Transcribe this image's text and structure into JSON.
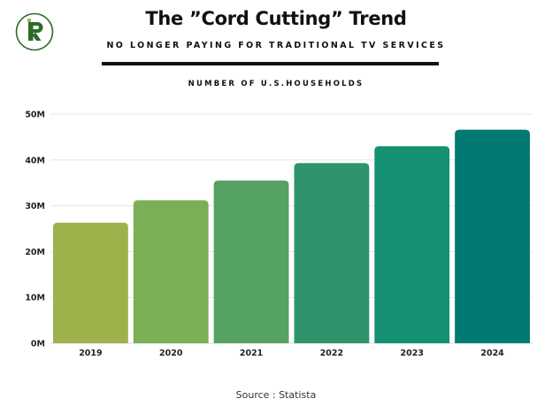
{
  "header": {
    "title": "The ”Cord Cutting” Trend",
    "subtitle": "NO LONGER PAYING FOR TRADITIONAL TV SERVICES"
  },
  "logo": {
    "icon": "r-monogram-logo",
    "color": "#2e6b2a"
  },
  "footer": {
    "source": "Source : Statista"
  },
  "chart_data": {
    "type": "bar",
    "title": "The ”Cord Cutting” Trend",
    "subtitle": "NO LONGER PAYING FOR TRADITIONAL TV SERVICES",
    "ylabel": "NUMBER OF U.S.HOUSEHOLDS",
    "xlabel": "",
    "categories": [
      "2019",
      "2020",
      "2021",
      "2022",
      "2023",
      "2024"
    ],
    "values": [
      26.3,
      31.2,
      35.5,
      39.3,
      43.0,
      46.6
    ],
    "ylim": [
      0,
      50
    ],
    "yticks": [
      "0M",
      "10M",
      "20M",
      "30M",
      "40M",
      "50M"
    ],
    "grid": true,
    "legend": "none",
    "bar_colors": [
      "#9db24a",
      "#7aaf55",
      "#55a262",
      "#2f936c",
      "#169072",
      "#017a74"
    ]
  }
}
